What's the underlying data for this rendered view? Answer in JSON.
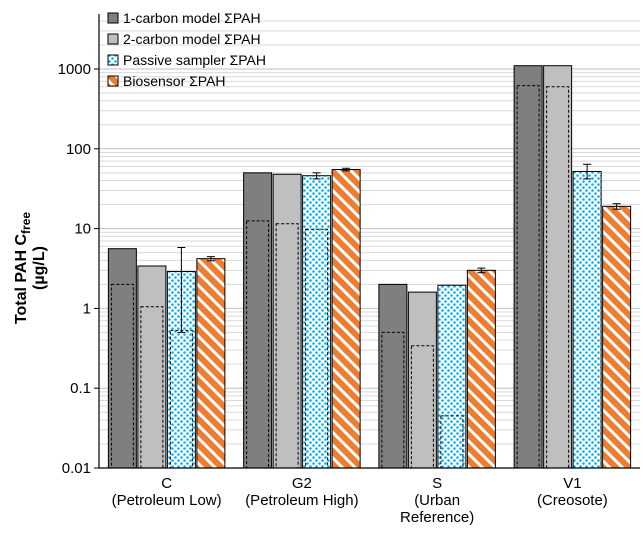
{
  "chart_data": {
    "type": "bar",
    "y_scale": "log",
    "ylim": [
      0.01,
      5000
    ],
    "yticks": [
      "0.01",
      "0.1",
      "1",
      "10",
      "100",
      "1000"
    ],
    "ylabel_line1": "Total PAH C",
    "ylabel_sub": "free",
    "ylabel_line2": "(µg/L)",
    "categories": [
      [
        "C",
        "(Petroleum Low)"
      ],
      [
        "G2",
        "(Petroleum High)"
      ],
      [
        "S",
        "(Urban",
        "Reference)"
      ],
      [
        "V1",
        "(Creosote)"
      ]
    ],
    "series": [
      {
        "name": "1-carbon model ΣPAH",
        "fill": "#7f7f7f",
        "pattern": "solid",
        "values": [
          5.6,
          50,
          2.0,
          1100
        ],
        "inner_values": [
          2.0,
          12.5,
          0.5,
          620
        ]
      },
      {
        "name": "2-carbon model ΣPAH",
        "fill": "#bfbfbf",
        "pattern": "solid",
        "values": [
          3.4,
          48,
          1.6,
          1100
        ],
        "inner_values": [
          1.05,
          11.5,
          0.34,
          600
        ]
      },
      {
        "name": "Passive sampler ΣPAH",
        "fill": "#00b0f0",
        "pattern": "dots",
        "values": [
          2.9,
          46,
          1.95,
          52
        ],
        "inner_values": [
          0.53,
          9.8,
          0.045,
          null
        ],
        "error": [
          [
            0.5,
            5.8
          ],
          [
            42,
            50
          ],
          [
            null,
            null
          ],
          [
            42,
            64
          ]
        ]
      },
      {
        "name": "Biosensor ΣPAH",
        "fill": "#ed7d31",
        "pattern": "stripes",
        "values": [
          4.2,
          55,
          3.0,
          19
        ],
        "inner_values": [
          null,
          null,
          null,
          null
        ],
        "error": [
          [
            3.95,
            4.45
          ],
          [
            53,
            57
          ],
          [
            2.8,
            3.2
          ],
          [
            17.5,
            20.5
          ]
        ]
      }
    ],
    "legend_position": "top-left",
    "grid": true
  }
}
